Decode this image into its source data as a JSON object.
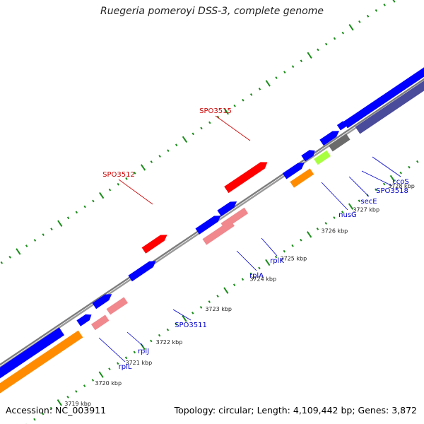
{
  "title": "Ruegeria pomeroyi DSS-3, complete genome",
  "footer": {
    "accession": "Accession: NC_003911",
    "summary": "Topology: circular; Length: 4,109,442 bp; Genes: 3,872"
  },
  "colors": {
    "cds": "#0000ff",
    "rrna": "#ff0000",
    "ribosomal": "#f0888e",
    "orange": "#ff8c00",
    "green": "#a8ff40",
    "gray": "#6b6b6b",
    "slate": "#4b4b9b",
    "backbone": "#808080",
    "ticks": "#1a8c1a",
    "gene_label_blue": "#0000cc",
    "gene_label_red": "#cc0000"
  },
  "scale_labels": [
    "3719 kbp",
    "3720 kbp",
    "3721 kbp",
    "3722 kbp",
    "3723 kbp",
    "3724 kbp",
    "3725 kbp",
    "3726 kbp",
    "3727 kbp",
    "3728 kbp"
  ],
  "gene_labels": [
    {
      "text": "SPO3515",
      "color": "red"
    },
    {
      "text": "SPO3512",
      "color": "red"
    },
    {
      "text": "rplL",
      "color": "blue"
    },
    {
      "text": "rplJ",
      "color": "blue"
    },
    {
      "text": "SPO3511",
      "color": "blue"
    },
    {
      "text": "rplA",
      "color": "blue"
    },
    {
      "text": "rplK",
      "color": "blue"
    },
    {
      "text": "nusG",
      "color": "blue"
    },
    {
      "text": "secE",
      "color": "blue"
    },
    {
      "text": "SPO3518",
      "color": "blue"
    },
    {
      "text": "ccoS",
      "color": "blue"
    }
  ]
}
